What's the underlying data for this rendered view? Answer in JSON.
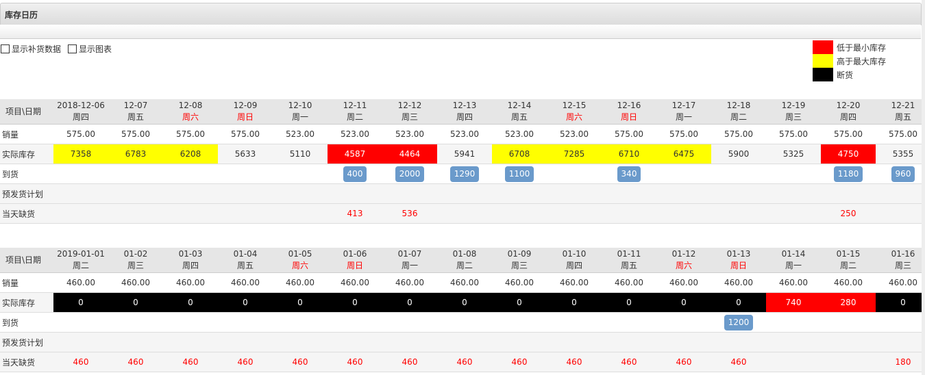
{
  "title": "库存日历",
  "options": [
    {
      "label": "显示补货数据",
      "checked": false
    },
    {
      "label": "显示图表",
      "checked": false
    }
  ],
  "legend": [
    {
      "label": "低于最小库存",
      "color": "#ff0000"
    },
    {
      "label": "高于最大库存",
      "color": "#ffff00"
    },
    {
      "label": "断货",
      "color": "#000000"
    }
  ],
  "row_labels": {
    "header": "项目\\日期",
    "sales": "销量",
    "stock": "实际库存",
    "arrival": "到货",
    "plan": "预发货计划",
    "shortage": "当天缺货"
  },
  "tables": [
    {
      "dates": [
        "2018-12-06",
        "12-07",
        "12-08",
        "12-09",
        "12-10",
        "12-11",
        "12-12",
        "12-13",
        "12-14",
        "12-15",
        "12-16",
        "12-17",
        "12-18",
        "12-19",
        "12-20",
        "12-21"
      ],
      "weekdays": [
        "周四",
        "周五",
        "周六",
        "周日",
        "周一",
        "周二",
        "周三",
        "周四",
        "周五",
        "周六",
        "周日",
        "周一",
        "周二",
        "周三",
        "周四",
        "周五"
      ],
      "sales": [
        "575.00",
        "575.00",
        "575.00",
        "575.00",
        "523.00",
        "523.00",
        "523.00",
        "523.00",
        "523.00",
        "523.00",
        "575.00",
        "575.00",
        "575.00",
        "575.00",
        "575.00",
        "575.00"
      ],
      "stock": [
        "7358",
        "6783",
        "6208",
        "5633",
        "5110",
        "4587",
        "4464",
        "5941",
        "6708",
        "7285",
        "6710",
        "6475",
        "5900",
        "5325",
        "4750",
        "5355"
      ],
      "stock_status": [
        "high",
        "high",
        "high",
        "",
        "",
        "low",
        "low",
        "",
        "high",
        "high",
        "high",
        "high",
        "",
        "",
        "low",
        ""
      ],
      "arrival": [
        "",
        "",
        "",
        "",
        "",
        "400",
        "2000",
        "1290",
        "1100",
        "",
        "340",
        "",
        "",
        "",
        "1180",
        "960"
      ],
      "plan": [
        "",
        "",
        "",
        "",
        "",
        "",
        "",
        "",
        "",
        "",
        "",
        "",
        "",
        "",
        "",
        ""
      ],
      "shortage": [
        "",
        "",
        "",
        "",
        "",
        "413",
        "536",
        "",
        "",
        "",
        "",
        "",
        "",
        "",
        "250",
        ""
      ]
    },
    {
      "dates": [
        "2019-01-01",
        "01-02",
        "01-03",
        "01-04",
        "01-05",
        "01-06",
        "01-07",
        "01-08",
        "01-09",
        "01-10",
        "01-11",
        "01-12",
        "01-13",
        "01-14",
        "01-15",
        "01-16"
      ],
      "weekdays": [
        "周二",
        "周三",
        "周四",
        "周五",
        "周六",
        "周日",
        "周一",
        "周二",
        "周三",
        "周四",
        "周五",
        "周六",
        "周日",
        "周一",
        "周二",
        "周三"
      ],
      "sales": [
        "460.00",
        "460.00",
        "460.00",
        "460.00",
        "460.00",
        "460.00",
        "460.00",
        "460.00",
        "460.00",
        "460.00",
        "460.00",
        "460.00",
        "460.00",
        "460.00",
        "460.00",
        "460.00"
      ],
      "stock": [
        "0",
        "0",
        "0",
        "0",
        "0",
        "0",
        "0",
        "0",
        "0",
        "0",
        "0",
        "0",
        "0",
        "740",
        "280",
        "0"
      ],
      "stock_status": [
        "out",
        "out",
        "out",
        "out",
        "out",
        "out",
        "out",
        "out",
        "out",
        "out",
        "out",
        "out",
        "out",
        "low",
        "low",
        "out"
      ],
      "arrival": [
        "",
        "",
        "",
        "",
        "",
        "",
        "",
        "",
        "",
        "",
        "",
        "",
        "1200",
        "",
        "",
        ""
      ],
      "plan": [
        "",
        "",
        "",
        "",
        "",
        "",
        "",
        "",
        "",
        "",
        "",
        "",
        "",
        "",
        "",
        ""
      ],
      "shortage": [
        "460",
        "460",
        "460",
        "460",
        "460",
        "460",
        "460",
        "460",
        "460",
        "460",
        "460",
        "460",
        "460",
        "",
        "",
        "180"
      ]
    }
  ]
}
